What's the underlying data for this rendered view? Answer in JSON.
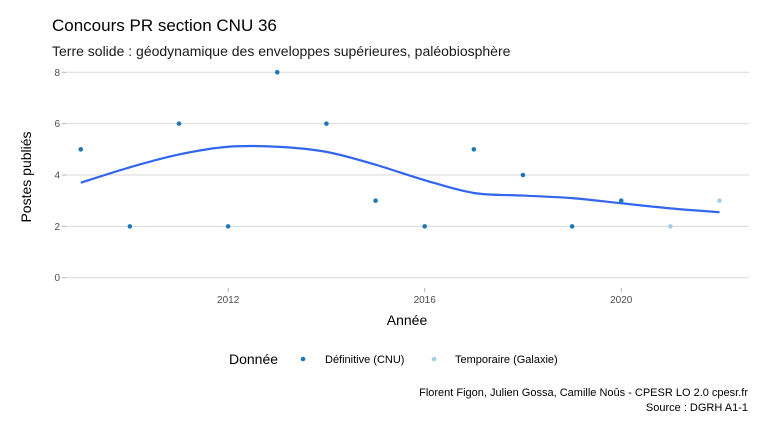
{
  "chart_data": {
    "type": "scatter",
    "title": "Concours PR section CNU 36",
    "subtitle": "Terre solide : géodynamique des enveloppes supérieures, paléobiosphère",
    "xlabel": "Année",
    "ylabel": "Postes publiés",
    "xlim": [
      2008.7,
      2022.6
    ],
    "ylim": [
      -0.4,
      8.4
    ],
    "x_ticks": [
      2012,
      2016,
      2020
    ],
    "y_ticks": [
      0,
      2,
      4,
      6,
      8
    ],
    "grid": true,
    "legend": {
      "title": "Donnée",
      "position": "bottom",
      "entries": [
        {
          "label": "Définitive (CNU)",
          "color": "#1f78b4"
        },
        {
          "label": "Temporaire (Galaxie)",
          "color": "#a6cee3"
        }
      ]
    },
    "series": [
      {
        "name": "Définitive (CNU)",
        "color": "#1f78b4",
        "x": [
          2009,
          2010,
          2011,
          2012,
          2013,
          2014,
          2015,
          2016,
          2017,
          2018,
          2019,
          2020
        ],
        "y": [
          5,
          2,
          6,
          2,
          8,
          6,
          3,
          2,
          5,
          4,
          2,
          3
        ]
      },
      {
        "name": "Temporaire (Galaxie)",
        "color": "#a6cee3",
        "x": [
          2021,
          2022
        ],
        "y": [
          2,
          3
        ]
      }
    ],
    "smooth": {
      "color": "#3366ee",
      "x": [
        2009,
        2010,
        2011,
        2012,
        2013,
        2014,
        2015,
        2016,
        2017,
        2018,
        2019,
        2020,
        2021,
        2022
      ],
      "y": [
        3.7,
        4.3,
        4.8,
        5.1,
        5.1,
        4.9,
        4.4,
        3.8,
        3.3,
        3.2,
        3.1,
        2.9,
        2.7,
        2.55
      ]
    },
    "caption": [
      "Florent Figon, Julien Gossa, Camille Noûs - CPESR LO 2.0 cpesr.fr",
      "Source : DGRH A1-1"
    ]
  }
}
